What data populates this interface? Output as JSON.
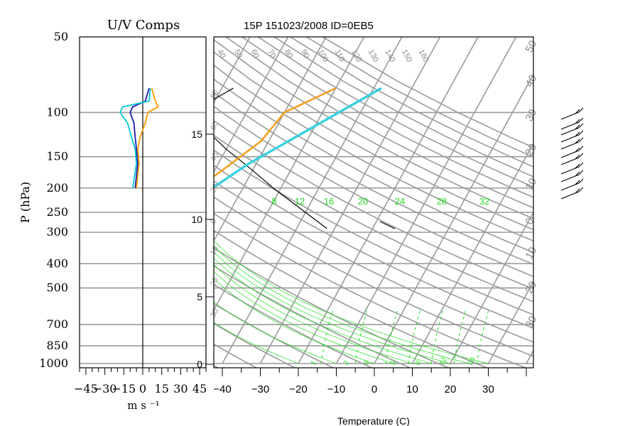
{
  "uv_panel": {
    "title": "U/V Comps",
    "ylabel": "P (hPa)",
    "xlabel": "m s ⁻¹",
    "pressure_ticks": [
      "50",
      "100",
      "150",
      "200",
      "250",
      "300",
      "400",
      "500",
      "700",
      "850",
      "1000"
    ],
    "pressure_values": [
      50,
      100,
      150,
      200,
      250,
      300,
      400,
      500,
      700,
      850,
      1000
    ],
    "speed_ticks": [
      "−45",
      "−30",
      "−15",
      "0",
      "15",
      "30",
      "45"
    ],
    "speed_values": [
      -45,
      -30,
      -15,
      0,
      15,
      30,
      45
    ],
    "xlim": [
      -50,
      50
    ],
    "colors": {
      "u": "#1a1aa8",
      "v": "#00c8d8",
      "u_alt": "#ff9900"
    }
  },
  "skewt_panel": {
    "title": "15P 151023/2008 ID=0EB5",
    "xlabel": "Temperature (C)",
    "temp_ticks": [
      "−40",
      "−30",
      "−20",
      "−10",
      "0",
      "10",
      "20",
      "30"
    ],
    "temp_values": [
      -40,
      -30,
      -20,
      -10,
      0,
      10,
      20,
      30
    ],
    "height_ticks": [
      "0",
      "5",
      "10",
      "15"
    ],
    "height_values_km": [
      0,
      5,
      10,
      15
    ],
    "theta_labels": [
      "40",
      "50",
      "60",
      "70",
      "80",
      "90",
      "100",
      "110",
      "120",
      "130",
      "140",
      "150",
      "160"
    ],
    "mixing_ratio_labels": [
      "8",
      "12",
      "16",
      "20",
      "24",
      "28",
      "32"
    ],
    "bottom_labels": [
      "1",
      "2",
      "3",
      "5",
      "8",
      "12",
      "20"
    ],
    "right_labels": [
      "50",
      "40",
      "30",
      "20",
      "10",
      "0",
      "10",
      "20",
      "30"
    ],
    "left_labels": [
      "80",
      "60",
      "40",
      "20",
      "0",
      "10",
      "20",
      "30"
    ],
    "colors": {
      "grid": "#9a9a9a",
      "temp": "#000000",
      "dewpoint": "#f4a023",
      "parcel": "#38d0e0",
      "mixing": "#22dd22"
    }
  },
  "chart_data": [
    {
      "type": "line",
      "title": "U/V Comps",
      "xlabel": "m s ⁻¹",
      "ylabel": "P (hPa)",
      "xlim": [
        -50,
        50
      ],
      "ylim": [
        1000,
        50
      ],
      "y_scale": "log",
      "series": [
        {
          "values": [
            {
              "p": 80,
              "x": 5
            },
            {
              "p": 90,
              "x": 2
            },
            {
              "p": 95,
              "x": -8
            },
            {
              "p": 100,
              "x": -10
            },
            {
              "p": 110,
              "x": -7
            },
            {
              "p": 125,
              "x": -6
            },
            {
              "p": 140,
              "x": -5
            },
            {
              "p": 160,
              "x": -4
            },
            {
              "p": 200,
              "x": -6
            }
          ]
        },
        {
          "values": [
            {
              "p": 80,
              "x": 6
            },
            {
              "p": 90,
              "x": 5
            },
            {
              "p": 95,
              "x": -16
            },
            {
              "p": 100,
              "x": -18
            },
            {
              "p": 110,
              "x": -12
            },
            {
              "p": 125,
              "x": -9
            },
            {
              "p": 140,
              "x": -6
            },
            {
              "p": 160,
              "x": -5
            },
            {
              "p": 200,
              "x": -8
            }
          ]
        },
        {
          "values": [
            {
              "p": 80,
              "x": 7
            },
            {
              "p": 90,
              "x": 10
            },
            {
              "p": 95,
              "x": 12
            },
            {
              "p": 100,
              "x": 4
            },
            {
              "p": 110,
              "x": 2
            },
            {
              "p": 125,
              "x": -2
            },
            {
              "p": 140,
              "x": -4
            },
            {
              "p": 160,
              "x": -3
            },
            {
              "p": 200,
              "x": -5
            }
          ]
        }
      ]
    },
    {
      "type": "line",
      "title": "15P 151023/2008 ID=0EB5",
      "xlabel": "Temperature (C)",
      "xlim": [
        -40,
        40
      ],
      "series": [
        {
          "values": [
            {
              "p": 80,
              "t": -77
            },
            {
              "p": 90,
              "t": -81
            },
            {
              "p": 100,
              "t": -82
            },
            {
              "p": 115,
              "t": -79
            },
            {
              "p": 140,
              "t": -70
            },
            {
              "p": 170,
              "t": -60
            },
            {
              "p": 200,
              "t": -52
            },
            {
              "p": 250,
              "t": -40
            },
            {
              "p": 290,
              "t": -32
            }
          ]
        },
        {
          "values": [
            {
              "p": 80,
              "t": -50
            },
            {
              "p": 100,
              "t": -60
            },
            {
              "p": 130,
              "t": -62
            },
            {
              "p": 170,
              "t": -68
            },
            {
              "p": 200,
              "t": -72
            }
          ]
        },
        {
          "values": [
            {
              "p": 80,
              "t": -38
            },
            {
              "p": 120,
              "t": -52
            },
            {
              "p": 160,
              "t": -62
            },
            {
              "p": 200,
              "t": -68
            }
          ]
        }
      ]
    }
  ]
}
